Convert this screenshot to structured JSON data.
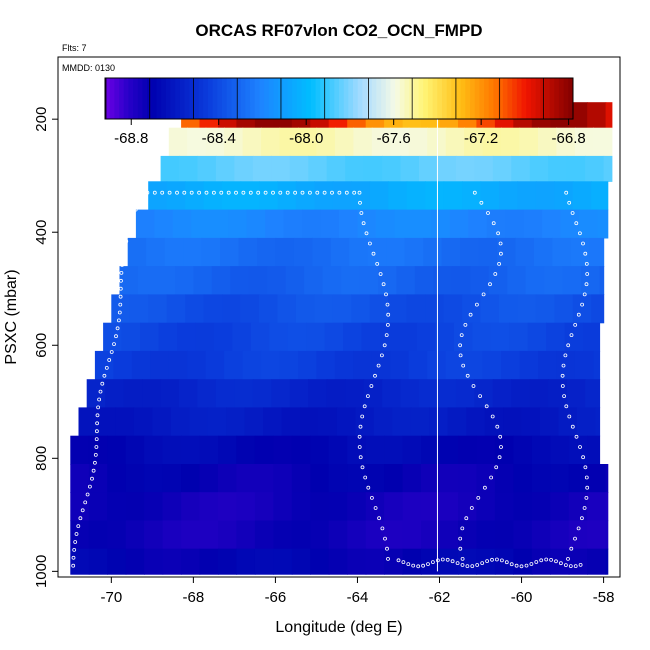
{
  "chart_data": {
    "type": "heatmap",
    "title": "ORCAS RF07vlon CO2_OCN_FMPD",
    "flights_note": "Flts: 7",
    "date_note": "MMDD: 0130",
    "xlabel": "Longitude (deg E)",
    "ylabel": "PSXC (mbar)",
    "xlim": [
      -71.3,
      -57.6
    ],
    "ylim": [
      1010,
      90
    ],
    "x_ticks": [
      -70,
      -68,
      -66,
      -64,
      -62,
      -60,
      -58
    ],
    "y_ticks": [
      200,
      400,
      600,
      800,
      1000
    ],
    "colorbar": {
      "range": [
        -68.92,
        -66.78
      ],
      "ticks": [
        -68.8,
        -68.4,
        -68.0,
        -67.6,
        -67.2,
        -66.8
      ],
      "tick_labels": [
        "-68.8",
        "-68.4",
        "-68.0",
        "-67.6",
        "-67.2",
        "-66.8"
      ]
    },
    "vertical_line_x": -62.05,
    "layers": [
      {
        "p_top": 170,
        "p_bot": 215,
        "x_start": -68.3,
        "x_end": -57.8,
        "value": -67.05
      },
      {
        "p_top": 215,
        "p_bot": 265,
        "x_start": -68.6,
        "x_end": -57.8,
        "value": -67.55
      },
      {
        "p_top": 265,
        "p_bot": 310,
        "x_start": -68.8,
        "x_end": -57.8,
        "value": -67.85
      },
      {
        "p_top": 310,
        "p_bot": 360,
        "x_start": -69.1,
        "x_end": -57.9,
        "value": -68.05
      },
      {
        "p_top": 360,
        "p_bot": 410,
        "x_start": -69.4,
        "x_end": -57.9,
        "value": -68.2
      },
      {
        "p_top": 410,
        "p_bot": 460,
        "x_start": -69.6,
        "x_end": -58.0,
        "value": -68.28
      },
      {
        "p_top": 460,
        "p_bot": 510,
        "x_start": -69.8,
        "x_end": -58.0,
        "value": -68.32
      },
      {
        "p_top": 510,
        "p_bot": 560,
        "x_start": -70.0,
        "x_end": -58.0,
        "value": -68.38
      },
      {
        "p_top": 560,
        "p_bot": 610,
        "x_start": -70.2,
        "x_end": -58.1,
        "value": -68.42
      },
      {
        "p_top": 610,
        "p_bot": 660,
        "x_start": -70.4,
        "x_end": -58.1,
        "value": -68.45
      },
      {
        "p_top": 660,
        "p_bot": 710,
        "x_start": -70.6,
        "x_end": -58.1,
        "value": -68.55
      },
      {
        "p_top": 710,
        "p_bot": 760,
        "x_start": -70.8,
        "x_end": -58.1,
        "value": -68.6
      },
      {
        "p_top": 760,
        "p_bot": 810,
        "x_start": -71.0,
        "x_end": -58.1,
        "value": -68.68
      },
      {
        "p_top": 810,
        "p_bot": 860,
        "x_start": -71.0,
        "x_end": -57.9,
        "value": -68.72
      },
      {
        "p_top": 860,
        "p_bot": 910,
        "x_start": -71.0,
        "x_end": -57.9,
        "value": -68.75
      },
      {
        "p_top": 910,
        "p_bot": 960,
        "x_start": -71.0,
        "x_end": -57.9,
        "value": -68.75
      },
      {
        "p_top": 960,
        "p_bot": 1005,
        "x_start": -71.0,
        "x_end": -57.9,
        "value": -68.7
      }
    ]
  }
}
